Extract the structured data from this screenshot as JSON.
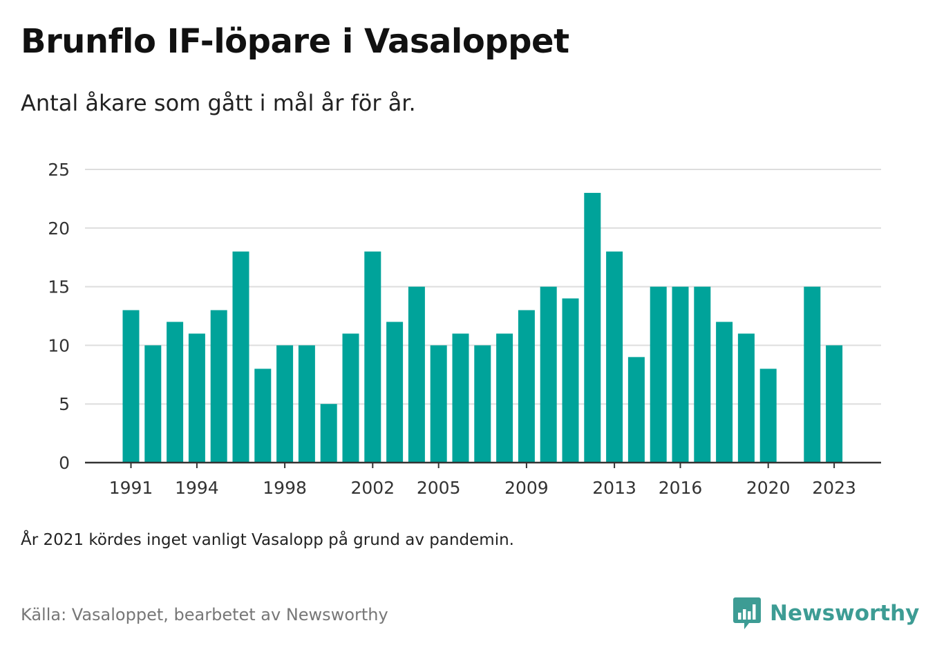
{
  "header": {
    "title": "Brunflo IF-löpare i Vasaloppet",
    "subtitle": "Antal åkare som gått i mål år för år."
  },
  "footer": {
    "note": "År 2021 kördes inget vanligt Vasalopp på grund av pandemin.",
    "source": "Källa: Vasaloppet, bearbetet av Newsworthy",
    "logo_text": "Newsworthy"
  },
  "colors": {
    "bar": "#00a39a",
    "grid": "#dddddd",
    "axis": "#333333",
    "logo": "#3d9c94"
  },
  "icons": {
    "logo": "newsworthy-logo-icon"
  },
  "chart_data": {
    "type": "bar",
    "categories": [
      "1991",
      "1992",
      "1993",
      "1994",
      "1995",
      "1996",
      "1997",
      "1998",
      "1999",
      "2000",
      "2001",
      "2002",
      "2003",
      "2004",
      "2005",
      "2006",
      "2007",
      "2008",
      "2009",
      "2010",
      "2011",
      "2012",
      "2013",
      "2014",
      "2015",
      "2016",
      "2017",
      "2018",
      "2019",
      "2020",
      "2021",
      "2022",
      "2023"
    ],
    "values": [
      13,
      10,
      12,
      11,
      13,
      18,
      8,
      10,
      10,
      5,
      11,
      18,
      12,
      15,
      10,
      11,
      10,
      11,
      13,
      15,
      14,
      23,
      18,
      9,
      15,
      15,
      15,
      12,
      11,
      8,
      null,
      15,
      10
    ],
    "x_tick_labels": [
      "1991",
      "1994",
      "1998",
      "2002",
      "2005",
      "2009",
      "2013",
      "2016",
      "2020",
      "2023"
    ],
    "y_ticks": [
      0,
      5,
      10,
      15,
      20,
      25
    ],
    "ylim": [
      0,
      25
    ],
    "xlabel": "",
    "ylabel": "",
    "grid": true,
    "legend": "none"
  }
}
